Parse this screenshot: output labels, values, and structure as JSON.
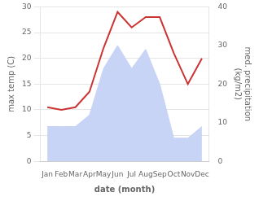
{
  "chart_data": {
    "type": "line",
    "categories": [
      "Jan",
      "Feb",
      "Mar",
      "Apr",
      "May",
      "Jun",
      "Jul",
      "Aug",
      "Sep",
      "Oct",
      "Nov",
      "Dec"
    ],
    "xlabel": "date (month)",
    "ylabel": "max temp (C)",
    "y2label": "med. precipitation\n(kg/m2)",
    "ylim": [
      0,
      30
    ],
    "yticks": [
      0,
      5,
      10,
      15,
      20,
      25,
      30
    ],
    "y2lim": [
      0,
      40
    ],
    "y2ticks": [
      0,
      10,
      20,
      30,
      40
    ],
    "grid": true,
    "series": [
      {
        "type": "area",
        "axis": "y2",
        "color": "#c8d4f5",
        "values": [
          9,
          9,
          9,
          12,
          24,
          30,
          24,
          29,
          20,
          6,
          6,
          9
        ]
      },
      {
        "type": "line",
        "color": "#cc3333",
        "values": [
          10.5,
          10,
          10.5,
          13.5,
          22,
          29,
          26,
          28,
          28,
          21,
          15,
          20
        ]
      }
    ]
  }
}
